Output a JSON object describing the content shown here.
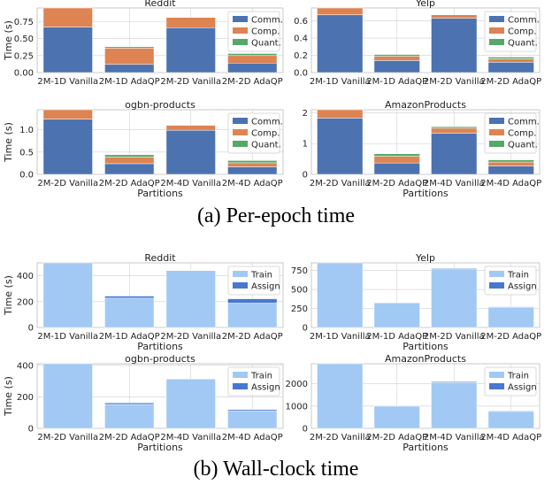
{
  "captions": {
    "a": "(a) Per-epoch time",
    "b": "(b) Wall-clock time"
  },
  "colors": {
    "Comm.": "#4c72b0",
    "Comp.": "#dd8452",
    "Quant.": "#55a868",
    "Train": "#a1c9f4",
    "Assign": "#4878d0"
  },
  "chart_data": [
    {
      "type": "bar",
      "stacked": true,
      "title": "Reddit",
      "xlabel": "",
      "ylabel": "Time (s)",
      "ylim": [
        0,
        0.95
      ],
      "yticks": [
        0,
        0.25,
        0.5,
        0.75
      ],
      "ytick_labels": [
        "0.00",
        "0.25",
        "0.50",
        "0.75"
      ],
      "categories": [
        "2M-1D Vanilla",
        "2M-1D AdaQP",
        "2M-2D Vanilla",
        "2M-2D AdaQP"
      ],
      "series": [
        {
          "name": "Comm.",
          "values": [
            0.67,
            0.12,
            0.66,
            0.14
          ]
        },
        {
          "name": "Comp.",
          "values": [
            0.28,
            0.24,
            0.15,
            0.11
          ]
        },
        {
          "name": "Quant.",
          "values": [
            0,
            0.02,
            0,
            0.03
          ]
        }
      ],
      "legend": "upper right",
      "grid": true
    },
    {
      "type": "bar",
      "stacked": true,
      "title": "Yelp",
      "xlabel": "",
      "ylabel": "",
      "ylim": [
        0,
        0.75
      ],
      "yticks": [
        0,
        0.2,
        0.4,
        0.6
      ],
      "ytick_labels": [
        "0.0",
        "0.2",
        "0.4",
        "0.6"
      ],
      "categories": [
        "2M-1D Vanilla",
        "2M-1D AdaQP",
        "2M-2D Vanilla",
        "2M-2D AdaQP"
      ],
      "series": [
        {
          "name": "Comm.",
          "values": [
            0.67,
            0.14,
            0.63,
            0.12
          ]
        },
        {
          "name": "Comp.",
          "values": [
            0.08,
            0.05,
            0.04,
            0.04
          ]
        },
        {
          "name": "Quant.",
          "values": [
            0,
            0.02,
            0,
            0.02
          ]
        }
      ],
      "legend": "upper right",
      "grid": true
    },
    {
      "type": "bar",
      "stacked": true,
      "title": "ogbn-products",
      "xlabel": "Partitions",
      "ylabel": "Time (s)",
      "ylim": [
        0,
        1.45
      ],
      "yticks": [
        0,
        0.5,
        1.0
      ],
      "ytick_labels": [
        "0.0",
        "0.5",
        "1.0"
      ],
      "categories": [
        "2M-2D Vanilla",
        "2M-2D AdaQP",
        "2M-4D Vanilla",
        "2M-4D AdaQP"
      ],
      "series": [
        {
          "name": "Comm.",
          "values": [
            1.24,
            0.24,
            0.99,
            0.17
          ]
        },
        {
          "name": "Comp.",
          "values": [
            0.21,
            0.15,
            0.11,
            0.09
          ]
        },
        {
          "name": "Quant.",
          "values": [
            0,
            0.05,
            0,
            0.05
          ]
        }
      ],
      "legend": "upper right",
      "grid": true
    },
    {
      "type": "bar",
      "stacked": true,
      "title": "AmazonProducts",
      "xlabel": "Partitions",
      "ylabel": "",
      "ylim": [
        0,
        2.1
      ],
      "yticks": [
        0,
        1,
        2
      ],
      "ytick_labels": [
        "0",
        "1",
        "2"
      ],
      "categories": [
        "2M-2D Vanilla",
        "2M-2D AdaQP",
        "2M-4D Vanilla",
        "2M-4D AdaQP"
      ],
      "series": [
        {
          "name": "Comm.",
          "values": [
            1.83,
            0.37,
            1.34,
            0.27
          ]
        },
        {
          "name": "Comp.",
          "values": [
            0.27,
            0.22,
            0.16,
            0.13
          ]
        },
        {
          "name": "Quant.",
          "values": [
            0,
            0.08,
            0.05,
            0.07
          ]
        }
      ],
      "legend": "upper right",
      "grid": true
    },
    {
      "type": "bar",
      "stacked": true,
      "title": "Reddit",
      "xlabel": "Partitions",
      "ylabel": "Time (s)",
      "ylim": [
        0,
        500
      ],
      "yticks": [
        0,
        200,
        400
      ],
      "ytick_labels": [
        "0",
        "200",
        "400"
      ],
      "categories": [
        "2M-1D Vanilla",
        "2M-1D AdaQP",
        "2M-2D Vanilla",
        "2M-2D AdaQP"
      ],
      "series": [
        {
          "name": "Train",
          "values": [
            500,
            227,
            440,
            188
          ]
        },
        {
          "name": "Assign",
          "values": [
            0,
            16,
            0,
            34
          ]
        }
      ],
      "legend": "upper right",
      "grid": true
    },
    {
      "type": "bar",
      "stacked": true,
      "title": "Yelp",
      "xlabel": "Partitions",
      "ylabel": "",
      "ylim": [
        0,
        850
      ],
      "yticks": [
        0,
        250,
        500,
        750
      ],
      "ytick_labels": [
        "0",
        "250",
        "500",
        "750"
      ],
      "categories": [
        "2M-1D Vanilla",
        "2M-1D AdaQP",
        "2M-2D Vanilla",
        "2M-2D AdaQP"
      ],
      "series": [
        {
          "name": "Train",
          "values": [
            850,
            325,
            770,
            270
          ]
        },
        {
          "name": "Assign",
          "values": [
            0,
            4,
            10,
            3
          ]
        }
      ],
      "legend": "upper right",
      "grid": true
    },
    {
      "type": "bar",
      "stacked": true,
      "title": "ogbn-products",
      "xlabel": "Partitions",
      "ylabel": "Time (s)",
      "ylim": [
        0,
        410
      ],
      "yticks": [
        0,
        200,
        400
      ],
      "ytick_labels": [
        "0",
        "200",
        "400"
      ],
      "categories": [
        "2M-2D Vanilla",
        "2M-2D AdaQP",
        "2M-4D Vanilla",
        "2M-4D AdaQP"
      ],
      "series": [
        {
          "name": "Train",
          "values": [
            410,
            152,
            313,
            112
          ]
        },
        {
          "name": "Assign",
          "values": [
            0,
            10,
            0,
            8
          ]
        }
      ],
      "legend": "upper right",
      "grid": true
    },
    {
      "type": "bar",
      "stacked": true,
      "title": "AmazonProducts",
      "xlabel": "Partitions",
      "ylabel": "",
      "ylim": [
        0,
        2900
      ],
      "yticks": [
        0,
        1000,
        2000
      ],
      "ytick_labels": [
        "0",
        "1000",
        "2000"
      ],
      "categories": [
        "2M-2D Vanilla",
        "2M-2D AdaQP",
        "2M-4D Vanilla",
        "2M-4D AdaQP"
      ],
      "series": [
        {
          "name": "Train",
          "values": [
            2900,
            1000,
            2060,
            760
          ]
        },
        {
          "name": "Assign",
          "values": [
            0,
            20,
            40,
            30
          ]
        }
      ],
      "legend": "upper right",
      "grid": true
    }
  ]
}
